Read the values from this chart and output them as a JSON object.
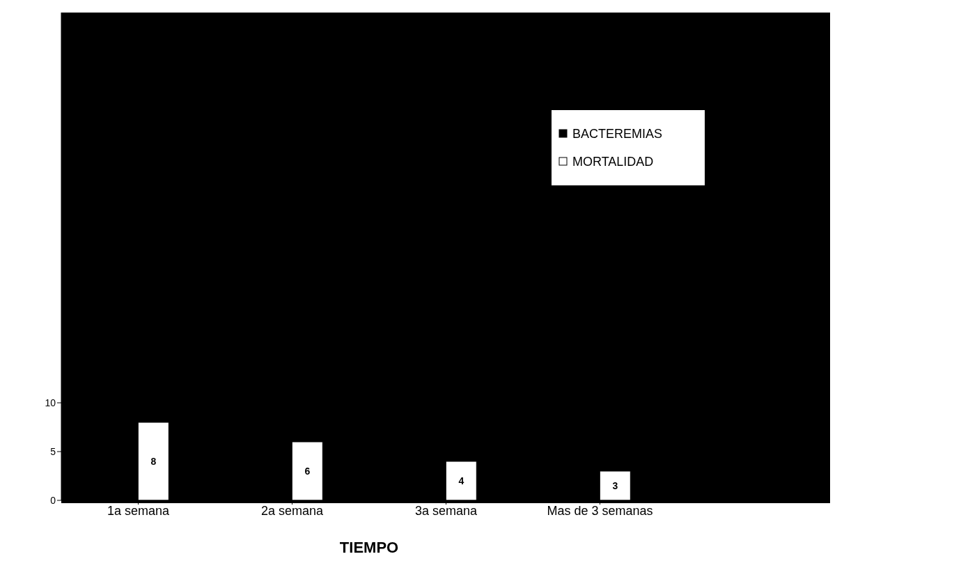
{
  "chart_data": {
    "type": "bar",
    "xlabel": "TIEMPO",
    "categories": [
      "1a semana",
      "2a semana",
      "3a semana",
      "Mas de 3 semanas"
    ],
    "series": [
      {
        "name": "BACTEREMIAS",
        "color": "#000000",
        "values": [
          null,
          null,
          null,
          null
        ]
      },
      {
        "name": "MORTALIDAD",
        "color": "#ffffff",
        "values": [
          8,
          6,
          4,
          3
        ]
      }
    ],
    "ylim": [
      0,
      50
    ],
    "yticks": [
      0,
      5,
      10
    ],
    "grid": false,
    "legend": "top right",
    "data_labels": true
  }
}
